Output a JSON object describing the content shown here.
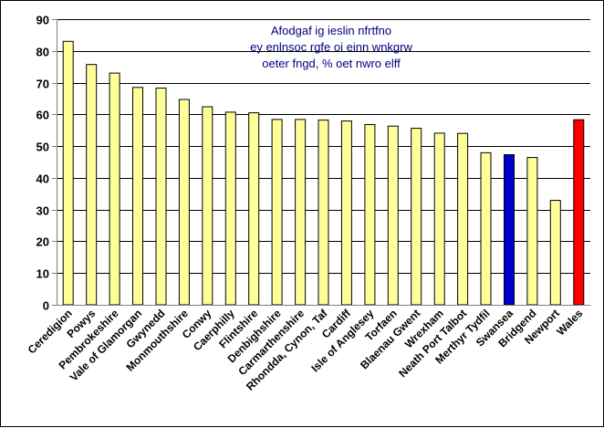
{
  "chart_data": {
    "type": "bar",
    "title_lines": [
      "Afodgaf ig ieslin nfrtfno",
      "ey enlnsoc rgfe oi einn wnkgrw",
      "oeter fngd, % oet nwro elff"
    ],
    "xlabel": "",
    "ylabel": "",
    "ylim": [
      0,
      90
    ],
    "yticks": [
      0,
      10,
      20,
      30,
      40,
      50,
      60,
      70,
      80,
      90
    ],
    "grid": true,
    "legend": "none",
    "categories": [
      "Ceredigion",
      "Powys",
      "Pembrokeshire",
      "Vale of Glamorgan",
      "Gwynedd",
      "Monmouthshire",
      "Conwy",
      "Caerphilly",
      "Flintshire",
      "Denbighshire",
      "Carmarthenshire",
      "Rhondda, Cynon, Taf",
      "Cardiff",
      "Isle of Anglesey",
      "Torfaen",
      "Blaenau Gwent",
      "Wrexham",
      "Neath Port Talbot",
      "Merthyr Tydfil",
      "Swansea",
      "Bridgend",
      "Newport",
      "Wales"
    ],
    "values": [
      83.0,
      75.7,
      73.0,
      68.5,
      68.3,
      64.7,
      62.4,
      60.7,
      60.5,
      58.4,
      58.4,
      58.2,
      57.9,
      56.8,
      56.3,
      55.6,
      54.1,
      54.0,
      47.9,
      47.3,
      46.4,
      32.9,
      58.3
    ],
    "colors": {
      "default": "#ffff99",
      "swansea": "#0000cc",
      "wales": "#ff0000",
      "gridline": "#000000",
      "axis": "#808080",
      "title": "#000080"
    },
    "highlight": {
      "Swansea": "swansea",
      "Wales": "wales"
    }
  }
}
